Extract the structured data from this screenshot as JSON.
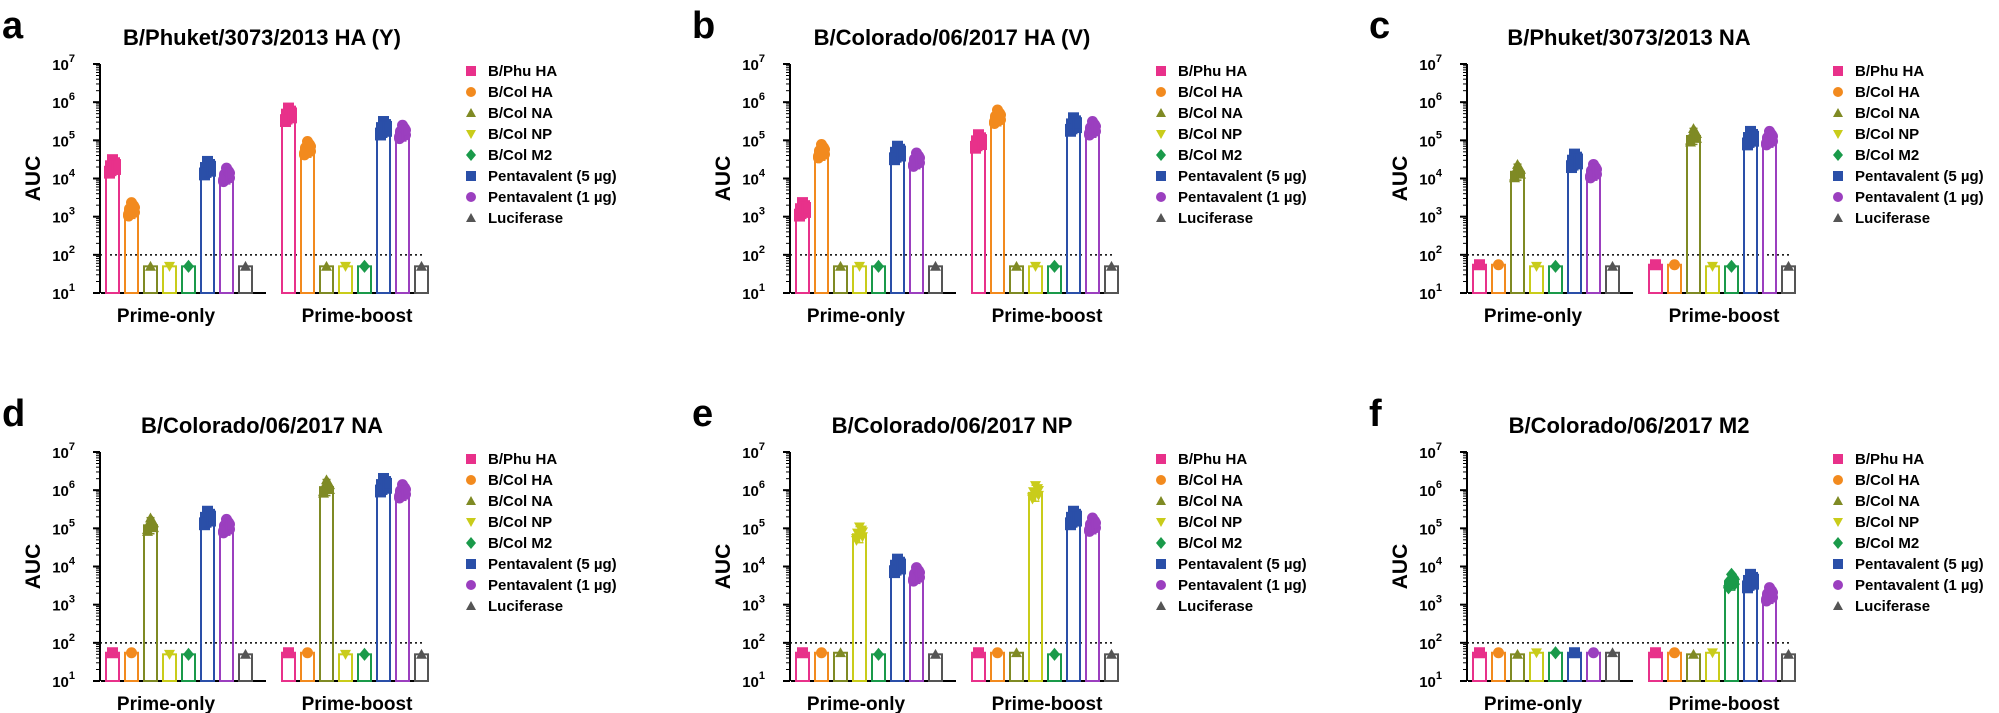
{
  "chart_data": {
    "type": "bar",
    "scale": "log",
    "ylabel": "AUC",
    "y_ticks": [
      {
        "base": "10",
        "exp": "1"
      },
      {
        "base": "10",
        "exp": "2"
      },
      {
        "base": "10",
        "exp": "3"
      },
      {
        "base": "10",
        "exp": "4"
      },
      {
        "base": "10",
        "exp": "5"
      },
      {
        "base": "10",
        "exp": "6"
      },
      {
        "base": "10",
        "exp": "7"
      }
    ],
    "ylim": [
      10,
      10000000
    ],
    "threshold": 100,
    "groups": [
      "Prime-only",
      "Prime-boost"
    ],
    "series": [
      {
        "name": "B/Phu HA",
        "color": "#e8318a",
        "marker": "square"
      },
      {
        "name": "B/Col HA",
        "color": "#f28a1e",
        "marker": "circle"
      },
      {
        "name": "B/Col NA",
        "color": "#7f8a24",
        "marker": "triangle"
      },
      {
        "name": "B/Col NP",
        "color": "#c9cc1a",
        "marker": "triangle-down"
      },
      {
        "name": "B/Col M2",
        "color": "#1a9a4a",
        "marker": "diamond"
      },
      {
        "name": "Pentavalent (5 µg)",
        "color": "#2a4fa8",
        "marker": "square"
      },
      {
        "name": "Pentavalent (1 µg)",
        "color": "#9b3fbf",
        "marker": "circle"
      },
      {
        "name": "Luciferase",
        "color": "#555555",
        "marker": "triangle"
      }
    ],
    "panels": [
      {
        "label": "a",
        "title": "B/Phuket/3073/2013 HA (Y)",
        "values": [
          [
            20000,
            1500,
            50,
            50,
            50,
            18000,
            12000,
            50
          ],
          [
            450000,
            60000,
            50,
            50,
            50,
            200000,
            160000,
            50
          ]
        ]
      },
      {
        "label": "b",
        "title": "B/Colorado/06/2017 HA (V)",
        "values": [
          [
            1500,
            50000,
            50,
            50,
            50,
            45000,
            30000,
            50
          ],
          [
            90000,
            400000,
            50,
            50,
            50,
            250000,
            200000,
            50
          ]
        ]
      },
      {
        "label": "c",
        "title": "B/Phuket/3073/2013 NA",
        "values": [
          [
            55,
            55,
            15000,
            50,
            50,
            28000,
            15000,
            50
          ],
          [
            55,
            55,
            130000,
            50,
            50,
            110000,
            110000,
            50
          ]
        ]
      },
      {
        "label": "d",
        "title": "B/Colorado/06/2017 NA",
        "values": [
          [
            55,
            55,
            120000,
            50,
            50,
            180000,
            110000,
            50
          ],
          [
            55,
            55,
            1200000,
            50,
            50,
            1300000,
            900000,
            50
          ]
        ]
      },
      {
        "label": "e",
        "title": "B/Colorado/06/2017 NP",
        "values": [
          [
            55,
            55,
            55,
            70000,
            50,
            10000,
            6000,
            50
          ],
          [
            55,
            55,
            55,
            850000,
            50,
            180000,
            120000,
            50
          ]
        ]
      },
      {
        "label": "f",
        "title": "B/Colorado/06/2017 M2",
        "values": [
          [
            55,
            55,
            50,
            55,
            55,
            55,
            55,
            55
          ],
          [
            55,
            55,
            50,
            55,
            4000,
            4000,
            1800,
            50
          ]
        ]
      }
    ]
  }
}
